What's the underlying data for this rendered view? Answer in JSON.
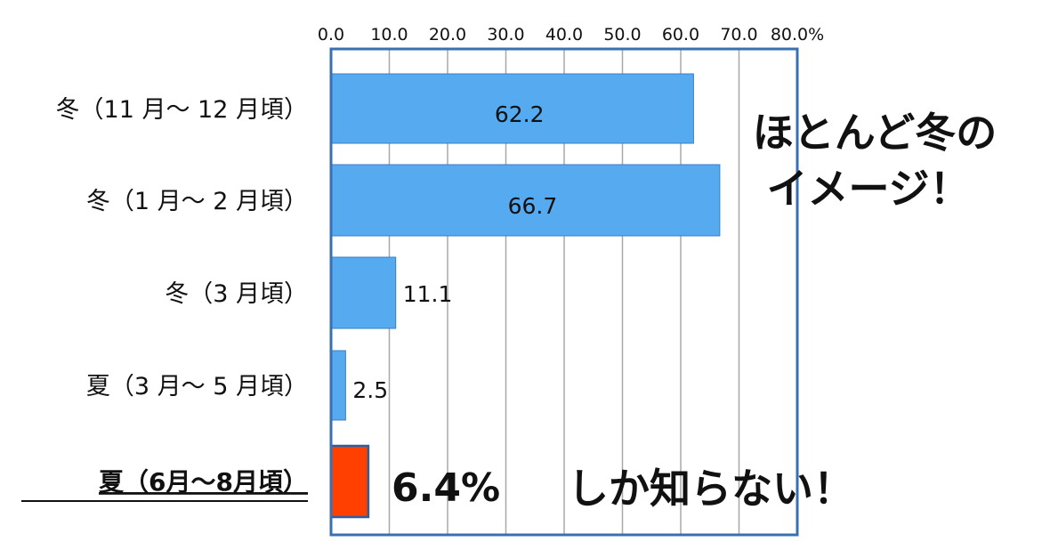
{
  "chart_data": {
    "type": "bar",
    "orientation": "horizontal",
    "categories": [
      "冬（11 月～ 12 月頃）",
      "冬（1 月～ 2 月頃）",
      "冬（3 月頃）",
      "夏（3 月～ 5 月頃）",
      "夏（6月～8月頃）"
    ],
    "values": [
      62.2,
      66.7,
      11.1,
      2.5,
      6.4
    ],
    "value_labels": [
      "62.2",
      "66.7",
      "11.1",
      "2.5",
      "6.4%"
    ],
    "highlight_index": 4,
    "xlim": [
      0,
      80
    ],
    "xticks": [
      "0.0",
      "10.0",
      "20.0",
      "30.0",
      "40.0",
      "50.0",
      "60.0",
      "70.0",
      "80.0%"
    ],
    "axis_position": "top",
    "grid": true,
    "colors": {
      "bar": "#55aaf0",
      "bar_edge": "#3a7fc4",
      "highlight": "#ff4000",
      "frame": "#3a70b0",
      "grid": "#a8a8a8"
    },
    "annotations": {
      "right_line1": "ほとんど冬の",
      "right_line2": "イメージ！",
      "bottom": "しか知らない！"
    }
  }
}
